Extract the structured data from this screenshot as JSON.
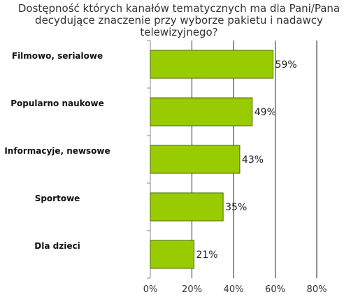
{
  "chart_data": {
    "type": "bar",
    "orientation": "horizontal",
    "title": "Dostępność których kanałów tematycznych ma dla Pani/Pana decydujące znaczenie przy wyborze pakietu i nadawcy telewizyjnego?",
    "categories": [
      "Filmowo, serialowe",
      "Popularno naukowe",
      "Informacyje, newsowe",
      "Sportowe",
      "Dla dzieci"
    ],
    "values": [
      59,
      49,
      43,
      35,
      21
    ],
    "value_labels": [
      "59%",
      "49%",
      "43%",
      "35%",
      "21%"
    ],
    "xlim": [
      0,
      80
    ],
    "x_ticks": [
      "0%",
      "20%",
      "40%",
      "60%",
      "80%"
    ],
    "grid": "vertical",
    "colors": {
      "bar_fill": "#99cc00",
      "bar_stroke": "#4a6600",
      "grid": "#222222"
    }
  }
}
